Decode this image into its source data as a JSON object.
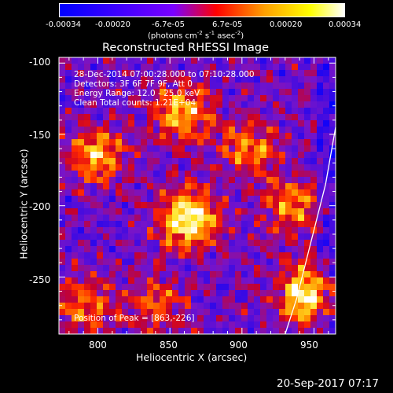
{
  "colorbar": {
    "tick_labels": [
      "-0.00034",
      "-0.00020",
      "-6.7e-05",
      "6.7e-05",
      "0.00020",
      "0.00034"
    ],
    "tick_values": [
      -0.00034,
      -0.0002,
      -6.7e-05,
      6.7e-05,
      0.0002,
      0.00034
    ],
    "units_label": "(photons cm",
    "units_sup1": "-2",
    "units_mid": " s",
    "units_sup2": "-1",
    "units_end": " asec",
    "units_sup3": "-2",
    "units_close": ")",
    "colors": [
      "#0000ff",
      "#7a00ff",
      "#ff0000",
      "#ffa000",
      "#ffff00",
      "#ffffff"
    ]
  },
  "chart_data": {
    "type": "heatmap",
    "title": "Reconstructed RHESSI Image",
    "xlabel": "Heliocentric X (arcsec)",
    "ylabel": "Heliocentric Y (arcsec)",
    "xlim": [
      773,
      965
    ],
    "ylim": [
      -290,
      -96
    ],
    "x_ticks": [
      800,
      850,
      900,
      950
    ],
    "y_ticks": [
      -100,
      -150,
      -200,
      -250
    ],
    "annotations": [
      "28-Dec-2014 07:00:28.000 to 07:10:28.000",
      "Detectors: 3F 6F 7F 9F, Att 0",
      "Energy Range: 12.0 - 25.0 keV",
      "Clean     Total counts: 1.21E+04"
    ],
    "peak_label": "Position of Peak = [863,-226]",
    "peak": [
      863,
      -226
    ],
    "sources": [
      {
        "x": 863,
        "y": -210,
        "intensity": 1.0
      },
      {
        "x": 945,
        "y": -262,
        "intensity": 0.95
      },
      {
        "x": 858,
        "y": -135,
        "intensity": 0.75
      },
      {
        "x": 800,
        "y": -165,
        "intensity": 0.7
      },
      {
        "x": 790,
        "y": -270,
        "intensity": 0.55
      },
      {
        "x": 935,
        "y": -200,
        "intensity": 0.6
      },
      {
        "x": 905,
        "y": -160,
        "intensity": 0.55
      },
      {
        "x": 840,
        "y": -270,
        "intensity": 0.45
      }
    ],
    "limb_curve": [
      [
        965,
        -145
      ],
      [
        958,
        -185
      ],
      [
        948,
        -225
      ],
      [
        938,
        -265
      ],
      [
        930,
        -290
      ]
    ]
  },
  "footer": {
    "timestamp": "20-Sep-2017 07:17"
  }
}
